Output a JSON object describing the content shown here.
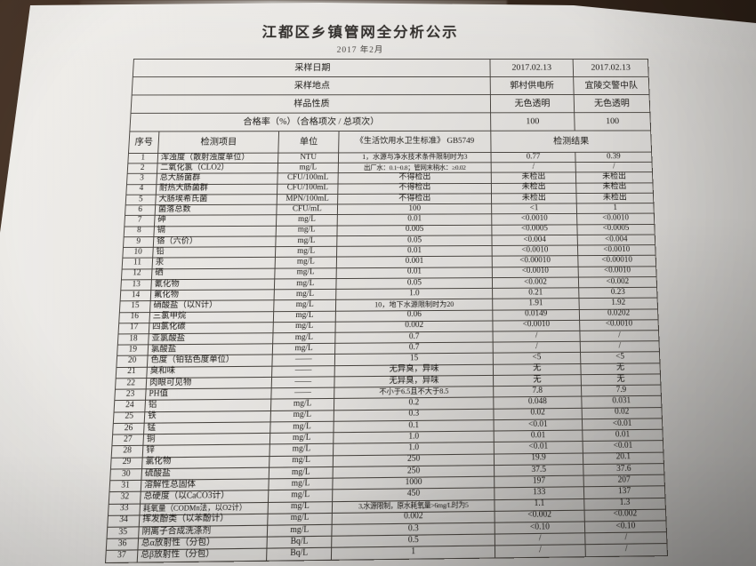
{
  "colors": {
    "desk": "#3a2b20",
    "paper": "#e7e5e2",
    "ink": "#1b1916",
    "line": "#46423d"
  },
  "doc": {
    "title": "江都区乡镇管网全分析公示",
    "subtitle": "2017 年2月"
  },
  "sampling": {
    "rows": [
      {
        "label": "采样日期",
        "v1": "2017.02.13",
        "v2": "2017.02.13"
      },
      {
        "label": "采样地点",
        "v1": "郭村供电所",
        "v2": "宜陵交警中队"
      },
      {
        "label": "样品性质",
        "v1": "无色透明",
        "v2": "无色透明"
      },
      {
        "label": "合格率（%）（合格项次 / 总项次）",
        "v1": "100",
        "v2": "100"
      }
    ]
  },
  "table": {
    "columns": {
      "seq": "序号",
      "item": "检测项目",
      "unit": "单位",
      "standard": "《生活饮用水卫生标准》 GB5749",
      "result": "检测结果"
    },
    "rows": [
      [
        "1",
        "浑浊度（散射浊度单位）",
        "NTU",
        "1，水源与净水技术条件限制时为3",
        "0.77",
        "0.39"
      ],
      [
        "2",
        "二氧化氯（CLO2）",
        "mg/L",
        "出厂水：0.1~0.8；管网末稍水：≥0.02",
        "/",
        "/"
      ],
      [
        "3",
        "总大肠菌群",
        "CFU/100mL",
        "不得检出",
        "未检出",
        "未检出"
      ],
      [
        "4",
        "耐热大肠菌群",
        "CFU/100mL",
        "不得检出",
        "未检出",
        "未检出"
      ],
      [
        "5",
        "大肠埃希氏菌",
        "MPN/100mL",
        "不得检出",
        "未检出",
        "未检出"
      ],
      [
        "6",
        "菌落总数",
        "CFU/mL",
        "100",
        "<1",
        "1"
      ],
      [
        "7",
        "砷",
        "mg/L",
        "0.01",
        "<0.0010",
        "<0.0010"
      ],
      [
        "8",
        "镉",
        "mg/L",
        "0.005",
        "<0.0005",
        "<0.0005"
      ],
      [
        "9",
        "铬（六价）",
        "mg/L",
        "0.05",
        "<0.004",
        "<0.004"
      ],
      [
        "10",
        "铅",
        "mg/L",
        "0.01",
        "<0.0010",
        "<0.0010"
      ],
      [
        "11",
        "汞",
        "mg/L",
        "0.001",
        "<0.00010",
        "<0.00010"
      ],
      [
        "12",
        "硒",
        "mg/L",
        "0.01",
        "<0.0010",
        "<0.0010"
      ],
      [
        "13",
        "氰化物",
        "mg/L",
        "0.05",
        "<0.002",
        "<0.002"
      ],
      [
        "14",
        "氟化物",
        "mg/L",
        "1.0",
        "0.21",
        "0.23"
      ],
      [
        "15",
        "硝酸盐（以N计）",
        "mg/L",
        "10，地下水源限制时为20",
        "1.91",
        "1.92"
      ],
      [
        "16",
        "三氯甲烷",
        "mg/L",
        "0.06",
        "0.0149",
        "0.0202"
      ],
      [
        "17",
        "四氯化碳",
        "mg/L",
        "0.002",
        "<0.0010",
        "<0.0010"
      ],
      [
        "18",
        "亚氯酸盐",
        "mg/L",
        "0.7",
        "/",
        "/"
      ],
      [
        "19",
        "氯酸盐",
        "mg/L",
        "0.7",
        "/",
        "/"
      ],
      [
        "20",
        "色度（铂钴色度单位）",
        "——",
        "15",
        "<5",
        "<5"
      ],
      [
        "21",
        "臭和味",
        "——",
        "无异臭，异味",
        "无",
        "无"
      ],
      [
        "22",
        "肉眼可见物",
        "——",
        "无异臭，异味",
        "无",
        "无"
      ],
      [
        "23",
        "PH值",
        "——",
        "不小于6.5且不大于8.5",
        "7.8",
        "7.9"
      ],
      [
        "24",
        "铝",
        "mg/L",
        "0.2",
        "0.048",
        "0.031"
      ],
      [
        "25",
        "铁",
        "mg/L",
        "0.3",
        "0.02",
        "0.02"
      ],
      [
        "26",
        "锰",
        "mg/L",
        "0.1",
        "<0.01",
        "<0.01"
      ],
      [
        "27",
        "铜",
        "mg/L",
        "1.0",
        "0.01",
        "0.01"
      ],
      [
        "28",
        "锌",
        "mg/L",
        "1.0",
        "<0.01",
        "<0.01"
      ],
      [
        "29",
        "氯化物",
        "mg/L",
        "250",
        "19.9",
        "20.1"
      ],
      [
        "30",
        "硫酸盐",
        "mg/L",
        "250",
        "37.5",
        "37.6"
      ],
      [
        "31",
        "溶解性总固体",
        "mg/L",
        "1000",
        "197",
        "207"
      ],
      [
        "32",
        "总硬度（以CaCO3计）",
        "mg/L",
        "450",
        "133",
        "137"
      ],
      [
        "33",
        "耗氧量（CODMn法，以O2计）",
        "mg/L",
        "3,水源限制，原水耗氧量>6mg/L时为5",
        "1.1",
        "1.3"
      ],
      [
        "34",
        "挥发酚类（以苯酚计）",
        "mg/L",
        "0.002",
        "<0.002",
        "<0.002"
      ],
      [
        "35",
        "阴离子合成洗涤剂",
        "mg/L",
        "0.3",
        "<0.10",
        "<0.10"
      ],
      [
        "36",
        "总α放射性（分包）",
        "Bq/L",
        "0.5",
        "/",
        "/"
      ],
      [
        "37",
        "总β放射性（分包）",
        "Bq/L",
        "1",
        "/",
        "/"
      ]
    ]
  }
}
